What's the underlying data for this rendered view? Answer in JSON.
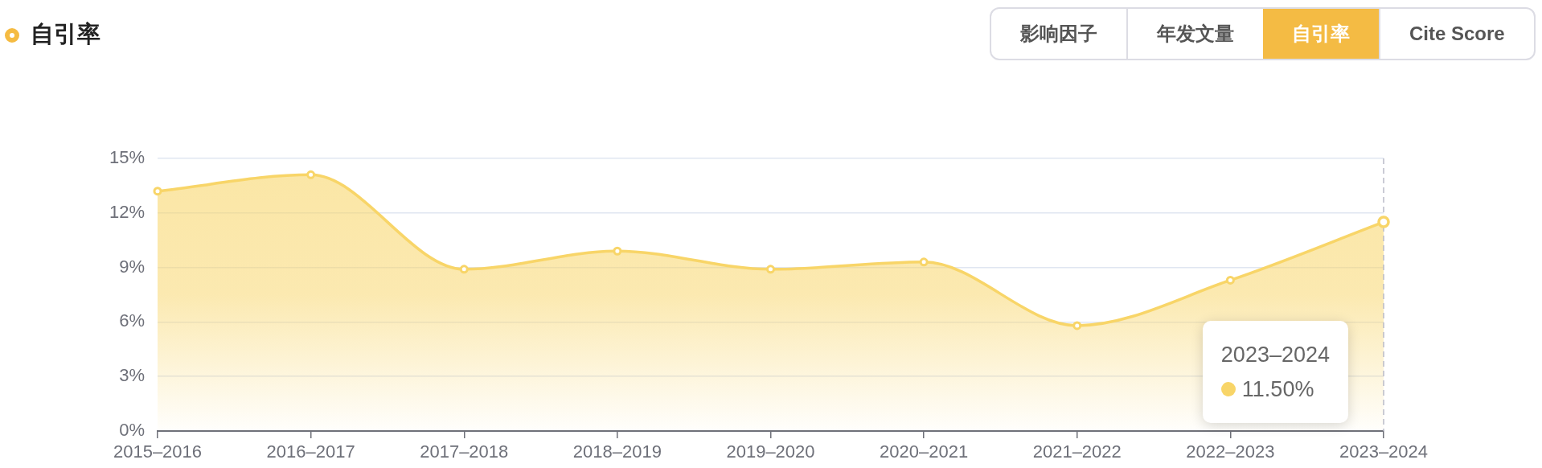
{
  "chart_data": {
    "type": "area",
    "title": "自引率",
    "categories": [
      "2015–2016",
      "2016–2017",
      "2017–2018",
      "2018–2019",
      "2019–2020",
      "2020–2021",
      "2021–2022",
      "2022–2023",
      "2023–2024"
    ],
    "series": [
      {
        "color": "#f8d568",
        "values": [
          13.2,
          14.1,
          8.9,
          9.9,
          8.9,
          9.3,
          5.8,
          8.3,
          11.5
        ]
      }
    ],
    "ylim": [
      0,
      15
    ],
    "yticks": [
      {
        "value": 0,
        "label": "0%"
      },
      {
        "value": 3,
        "label": "3%"
      },
      {
        "value": 6,
        "label": "6%"
      },
      {
        "value": 9,
        "label": "9%"
      },
      {
        "value": 12,
        "label": "12%"
      },
      {
        "value": 15,
        "label": "15%"
      }
    ],
    "grid": "y",
    "marker": "circle",
    "line_style": "solid",
    "ref_lines": [
      {
        "axis": "x",
        "value": "2023–2024",
        "color": "#b9bac8",
        "line_style": "dashed"
      }
    ],
    "annotations": [
      "影响因子",
      "年发文量",
      "自引率",
      "Cite Score",
      "2023–2024",
      "11.50%"
    ]
  }
}
